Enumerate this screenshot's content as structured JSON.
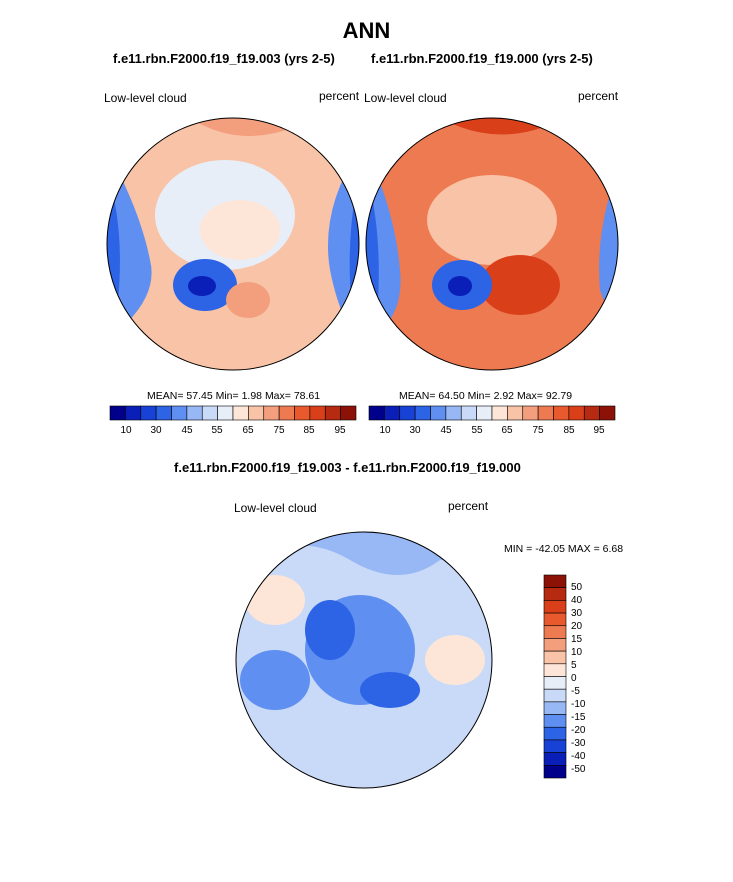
{
  "title": "ANN",
  "colors": {
    "scale": [
      "#00008b",
      "#0a1fb8",
      "#1842d6",
      "#2d63e5",
      "#5f8ff0",
      "#97b7f5",
      "#c8daf8",
      "#e8eef8",
      "#fde6d8",
      "#f8c3a6",
      "#f39f7d",
      "#ee7a52",
      "#e85a2e",
      "#d9401a",
      "#b52a10",
      "#8c1208"
    ],
    "diff_scale": [
      "#00008b",
      "#0a1fb8",
      "#1842d6",
      "#2d63e5",
      "#5f8ff0",
      "#97b7f5",
      "#c8daf8",
      "#e8eef8",
      "#fde6d8",
      "#f8c3a6",
      "#f39f7d",
      "#ee7a52",
      "#e85a2e",
      "#d9401a",
      "#b52a10",
      "#8c1208"
    ]
  },
  "chart_data": [
    {
      "type": "heatmap",
      "projection": "north-polar-stereographic",
      "case_title": "f.e11.rbn.F2000.f19_f19.003 (yrs 2-5)",
      "variable": "Low-level cloud",
      "units": "percent",
      "mean_label": "MEAN=",
      "mean": "57.45",
      "min_label": "Min=",
      "min": "1.98",
      "max_label": "Max=",
      "max": "78.61",
      "colorbar_ticks": [
        "10",
        "30",
        "45",
        "55",
        "65",
        "75",
        "85",
        "95"
      ]
    },
    {
      "type": "heatmap",
      "projection": "north-polar-stereographic",
      "case_title": "f.e11.rbn.F2000.f19_f19.000 (yrs 2-5)",
      "variable": "Low-level cloud",
      "units": "percent",
      "mean_label": "MEAN=",
      "mean": "64.50",
      "min_label": "Min=",
      "min": "2.92",
      "max_label": "Max=",
      "max": "92.79",
      "colorbar_ticks": [
        "10",
        "30",
        "45",
        "55",
        "65",
        "75",
        "85",
        "95"
      ]
    },
    {
      "type": "heatmap",
      "projection": "north-polar-stereographic",
      "case_title": "f.e11.rbn.F2000.f19_f19.003 - f.e11.rbn.F2000.f19_f19.000",
      "variable": "Low-level cloud",
      "units": "percent",
      "minmax_text": "MIN = -42.05 MAX =   6.68",
      "colorbar_ticks": [
        "50",
        "40",
        "30",
        "20",
        "15",
        "10",
        "5",
        "0",
        "-5",
        "-10",
        "-15",
        "-20",
        "-30",
        "-40",
        "-50"
      ]
    }
  ]
}
